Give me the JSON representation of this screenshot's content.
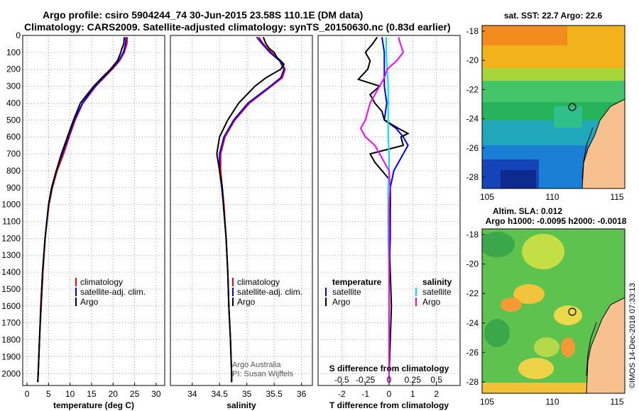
{
  "header": {
    "line1": "Argo profile: csiro 5904244_74 30-Jun-2015 23.58S 110.1E (DM data)",
    "line2": "Climatology: CARS2009. Satellite-adjusted climatology: synTS_20150630.nc (0.83d earlier)"
  },
  "colors": {
    "climatology": "#ff0000",
    "satellite": "#0000ff",
    "argo": "#000000",
    "sal_satellite": "#00e5e5",
    "sal_argo": "#ff00ff",
    "land": "#f6c08f"
  },
  "credit": {
    "line1": "Argo Australia",
    "line2": "PI: Susan Wijffels"
  },
  "watermark": "©IMOS 14-Dec-2018 07:33:13",
  "map_sst": {
    "title": "sat. SST: 22.7 Argo: 22.6",
    "yticks": [
      "-18",
      "-20",
      "-22",
      "-24",
      "-26",
      "-28"
    ],
    "xticks": [
      "105",
      "110",
      "115"
    ]
  },
  "map_sla": {
    "title1": "Altim. SLA: 0.012",
    "title2": "Argo h1000: -0.0095 h2000: -0.0018",
    "yticks": [
      "-18",
      "-20",
      "-22",
      "-24",
      "-26",
      "-28"
    ],
    "xticks": [
      "105",
      "110",
      "115"
    ]
  },
  "chart_data": [
    {
      "type": "line",
      "xlabel": "temperature (deg C)",
      "xlim": [
        -1,
        32
      ],
      "ylim": [
        2070,
        0
      ],
      "xticks": [
        0,
        5,
        10,
        15,
        20,
        25,
        30
      ],
      "yticks": [
        0,
        100,
        200,
        300,
        400,
        500,
        600,
        700,
        800,
        900,
        1000,
        1100,
        1200,
        1300,
        1400,
        1500,
        1600,
        1700,
        1800,
        1900,
        2000
      ],
      "legend": [
        "climatology",
        "satellite-adj. clim.",
        "Argo"
      ],
      "series": [
        {
          "name": "climatology",
          "depth": [
            10,
            50,
            100,
            150,
            200,
            300,
            400,
            500,
            600,
            700,
            800,
            900,
            1000,
            1200,
            1400,
            1600,
            1800,
            2000,
            2050
          ],
          "values": [
            23.3,
            23.2,
            22.6,
            21.5,
            19.8,
            16.0,
            13.0,
            11.2,
            9.8,
            8.5,
            7.0,
            5.9,
            5.1,
            4.2,
            3.7,
            3.3,
            2.9,
            2.6,
            2.5
          ]
        },
        {
          "name": "satellite-adj. clim.",
          "depth": [
            10,
            50,
            100,
            150,
            200,
            300,
            400,
            500,
            600,
            700,
            800,
            900,
            1000,
            1200,
            1400,
            1600,
            1800,
            2000,
            2050
          ],
          "values": [
            23.0,
            22.9,
            22.4,
            21.3,
            19.6,
            15.8,
            12.9,
            11.0,
            9.6,
            8.2,
            6.8,
            5.8,
            5.0,
            4.2,
            3.6,
            3.2,
            2.9,
            2.6,
            2.5
          ]
        },
        {
          "name": "Argo",
          "depth": [
            10,
            50,
            80,
            100,
            150,
            200,
            250,
            300,
            400,
            500,
            600,
            700,
            750,
            800,
            900,
            1000,
            1200,
            1400,
            1600,
            1800,
            2000,
            2050
          ],
          "values": [
            22.6,
            22.5,
            22.0,
            21.8,
            21.0,
            19.4,
            17.4,
            15.5,
            12.4,
            10.8,
            9.4,
            8.0,
            7.4,
            6.8,
            5.7,
            5.0,
            4.2,
            3.6,
            3.2,
            2.9,
            2.6,
            2.5
          ]
        }
      ]
    },
    {
      "type": "line",
      "xlabel": "salinity",
      "xlim": [
        33.6,
        36.2
      ],
      "ylim": [
        2070,
        0
      ],
      "xticks": [
        34,
        34.5,
        35,
        35.5,
        36
      ],
      "legend": [
        "climatology",
        "satellite-adj. clim.",
        "Argo"
      ],
      "series": [
        {
          "name": "climatology",
          "depth": [
            10,
            50,
            100,
            150,
            200,
            250,
            300,
            400,
            500,
            600,
            700,
            800,
            900,
            1000,
            1200,
            1400,
            1600,
            1800,
            2000,
            2050
          ],
          "values": [
            35.22,
            35.3,
            35.45,
            35.62,
            35.7,
            35.65,
            35.45,
            35.05,
            34.78,
            34.6,
            34.52,
            34.52,
            34.55,
            34.58,
            34.62,
            34.65,
            34.67,
            34.7,
            34.72,
            34.72
          ]
        },
        {
          "name": "satellite-adj. clim.",
          "depth": [
            10,
            50,
            100,
            150,
            200,
            250,
            300,
            400,
            500,
            600,
            700,
            800,
            900,
            1000,
            1200,
            1400,
            1600,
            1800,
            2000,
            2050
          ],
          "values": [
            35.18,
            35.28,
            35.42,
            35.6,
            35.68,
            35.62,
            35.43,
            35.02,
            34.76,
            34.58,
            34.5,
            34.5,
            34.54,
            34.57,
            34.62,
            34.65,
            34.67,
            34.7,
            34.72,
            34.72
          ]
        },
        {
          "name": "Argo",
          "depth": [
            10,
            50,
            80,
            100,
            130,
            170,
            200,
            250,
            300,
            400,
            500,
            600,
            700,
            800,
            900,
            1000,
            1200,
            1400,
            1600,
            1800,
            2000,
            2050
          ],
          "values": [
            35.3,
            35.35,
            35.42,
            35.5,
            35.55,
            35.68,
            35.62,
            35.35,
            35.15,
            34.85,
            34.65,
            34.5,
            34.45,
            34.5,
            34.55,
            34.57,
            34.62,
            34.65,
            34.67,
            34.7,
            34.72,
            34.72
          ]
        }
      ]
    },
    {
      "type": "line",
      "xlabel": "T difference from climatology",
      "xlabel2": "S difference from climatology",
      "xlim": [
        -3,
        3
      ],
      "x2lim": [
        -0.75,
        0.75
      ],
      "ylim": [
        2070,
        0
      ],
      "xticks": [
        -2,
        -1,
        0,
        1,
        2
      ],
      "x2ticks": [
        -0.5,
        -0.25,
        0,
        0.25,
        0.5
      ],
      "x2ticklabels": [
        "-0.5",
        "-0.25",
        "0",
        "0.25",
        "0.5"
      ],
      "legend_t_title": "temperature",
      "legend_s_title": "salinity",
      "legend_t": [
        "satellite",
        "Argo"
      ],
      "legend_s": [
        "satellite",
        "Argo"
      ],
      "series": [
        {
          "name": "satellite",
          "variable": "temperature",
          "depth": [
            10,
            100,
            200,
            300,
            400,
            500,
            550,
            600,
            650,
            700,
            800,
            900,
            1000,
            1200,
            1400,
            1600,
            1800,
            2000,
            2050
          ],
          "values": [
            -0.3,
            -0.2,
            -0.2,
            -0.2,
            -0.1,
            -0.2,
            0.3,
            0.6,
            0.8,
            0.6,
            0.2,
            0.05,
            0.05,
            0.05,
            0.0,
            0.0,
            0.0,
            0.0,
            0.0
          ]
        },
        {
          "name": "Argo",
          "variable": "temperature",
          "depth": [
            10,
            50,
            100,
            150,
            200,
            260,
            300,
            350,
            400,
            450,
            500,
            550,
            580,
            600,
            650,
            700,
            750,
            800,
            850,
            900,
            1000,
            1200,
            1400,
            1600,
            1800,
            2000,
            2050
          ],
          "values": [
            -0.5,
            -0.7,
            -1.0,
            -0.8,
            -0.9,
            -1.3,
            -0.4,
            -0.8,
            -0.6,
            -0.3,
            -0.2,
            0.4,
            0.8,
            0.5,
            0.6,
            -0.8,
            -0.6,
            -0.3,
            0.0,
            0.05,
            0.05,
            0.0,
            0.05,
            0.1,
            0.05,
            0.0,
            0.0
          ]
        },
        {
          "name": "satellite",
          "variable": "salinity",
          "depth": [
            10,
            100,
            200,
            300,
            400,
            500,
            600,
            700,
            800,
            900,
            1000,
            1200,
            1400,
            1600,
            1800,
            2000,
            2050
          ],
          "values": [
            -0.03,
            -0.03,
            -0.02,
            -0.01,
            -0.01,
            -0.01,
            -0.01,
            0.0,
            0.0,
            -0.01,
            -0.01,
            -0.01,
            0.0,
            0.0,
            0.0,
            0.0,
            0.0
          ]
        },
        {
          "name": "Argo",
          "variable": "salinity",
          "depth": [
            10,
            50,
            100,
            150,
            200,
            250,
            300,
            400,
            500,
            550,
            600,
            650,
            700,
            750,
            800,
            900,
            1000,
            1200,
            1400,
            1600,
            1800,
            2000,
            2050
          ],
          "values": [
            0.1,
            0.12,
            0.15,
            0.08,
            -0.02,
            -0.05,
            -0.1,
            -0.2,
            -0.25,
            -0.3,
            -0.25,
            -0.15,
            -0.1,
            -0.05,
            0.0,
            0.01,
            0.0,
            0.0,
            0.0,
            0.0,
            0.0,
            0.0,
            0.0
          ]
        }
      ]
    }
  ]
}
